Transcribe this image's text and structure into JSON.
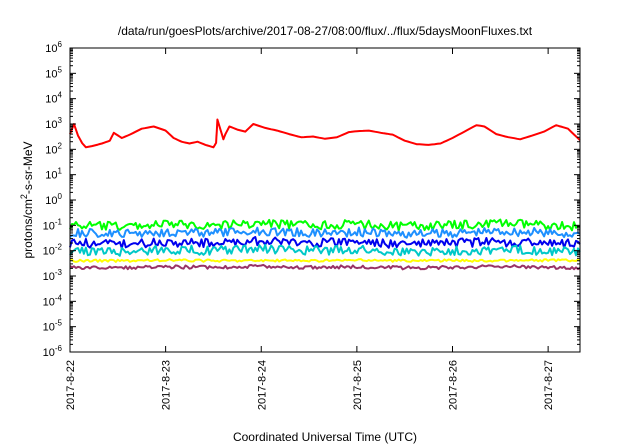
{
  "chart_data": {
    "type": "line",
    "title": "/data/run/goesPlots/archive/2017-08-27/08:00/flux/../flux/5daysMoonFluxes.txt",
    "xlabel": "Coordinated Universal Time (UTC)",
    "ylabel_parts": {
      "base": "protons/cm",
      "sup": "2",
      "rest": "-s-sr-MeV"
    },
    "yscale": "log",
    "ylim": [
      1e-06,
      1000000.0
    ],
    "y_ticks": [
      {
        "value": 1e-06,
        "base": "10",
        "exp": "-6"
      },
      {
        "value": 1e-05,
        "base": "10",
        "exp": "-5"
      },
      {
        "value": 0.0001,
        "base": "10",
        "exp": "-4"
      },
      {
        "value": 0.001,
        "base": "10",
        "exp": "-3"
      },
      {
        "value": 0.01,
        "base": "10",
        "exp": "-2"
      },
      {
        "value": 0.1,
        "base": "10",
        "exp": "-1"
      },
      {
        "value": 1,
        "base": "10",
        "exp": "0"
      },
      {
        "value": 10,
        "base": "10",
        "exp": "1"
      },
      {
        "value": 100,
        "base": "10",
        "exp": "2"
      },
      {
        "value": 1000,
        "base": "10",
        "exp": "3"
      },
      {
        "value": 10000,
        "base": "10",
        "exp": "4"
      },
      {
        "value": 100000,
        "base": "10",
        "exp": "5"
      },
      {
        "value": 1000000,
        "base": "10",
        "exp": "6"
      }
    ],
    "xlim": [
      "2017-08-22T00:00",
      "2017-08-27T08:00"
    ],
    "x_ticks": [
      {
        "value": "2017-08-22T00:00",
        "label": "2017-8-22"
      },
      {
        "value": "2017-08-23T00:00",
        "label": "2017-8-23"
      },
      {
        "value": "2017-08-24T00:00",
        "label": "2017-8-24"
      },
      {
        "value": "2017-08-25T00:00",
        "label": "2017-8-25"
      },
      {
        "value": "2017-08-26T00:00",
        "label": "2017-8-26"
      },
      {
        "value": "2017-08-27T00:00",
        "label": "2017-8-27"
      }
    ],
    "grid": false,
    "series": [
      {
        "color": "#ff0000",
        "x": [
          "2017-08-22T00:00",
          "2017-08-22T01:00",
          "2017-08-22T02:00",
          "2017-08-22T03:00",
          "2017-08-22T04:00",
          "2017-08-22T06:00",
          "2017-08-22T08:00",
          "2017-08-22T10:00",
          "2017-08-22T11:00",
          "2017-08-22T13:00",
          "2017-08-22T15:00",
          "2017-08-22T18:00",
          "2017-08-22T21:00",
          "2017-08-23T00:00",
          "2017-08-23T02:00",
          "2017-08-23T04:00",
          "2017-08-23T06:00",
          "2017-08-23T08:00",
          "2017-08-23T10:00",
          "2017-08-23T12:00",
          "2017-08-23T12:40",
          "2017-08-23T13:00",
          "2017-08-23T14:30",
          "2017-08-23T15:00",
          "2017-08-23T16:00",
          "2017-08-23T18:00",
          "2017-08-23T20:00",
          "2017-08-23T22:00",
          "2017-08-24T01:00",
          "2017-08-24T04:00",
          "2017-08-24T07:00",
          "2017-08-24T10:00",
          "2017-08-24T13:00",
          "2017-08-24T16:00",
          "2017-08-24T19:00",
          "2017-08-24T22:00",
          "2017-08-25T00:00",
          "2017-08-25T03:00",
          "2017-08-25T06:00",
          "2017-08-25T09:00",
          "2017-08-25T12:00",
          "2017-08-25T15:00",
          "2017-08-25T18:00",
          "2017-08-25T21:00",
          "2017-08-26T00:00",
          "2017-08-26T03:00",
          "2017-08-26T06:00",
          "2017-08-26T08:00",
          "2017-08-26T11:00",
          "2017-08-26T14:00",
          "2017-08-26T17:00",
          "2017-08-26T20:00",
          "2017-08-26T23:00",
          "2017-08-27T02:00",
          "2017-08-27T05:00",
          "2017-08-27T08:00"
        ],
        "values": [
          400,
          1000,
          350,
          180,
          120,
          140,
          170,
          220,
          450,
          280,
          380,
          650,
          800,
          550,
          280,
          200,
          170,
          200,
          150,
          120,
          180,
          1500,
          250,
          400,
          800,
          600,
          500,
          1000,
          700,
          550,
          400,
          300,
          320,
          260,
          300,
          480,
          520,
          550,
          450,
          380,
          220,
          160,
          150,
          170,
          280,
          500,
          900,
          800,
          400,
          300,
          250,
          350,
          500,
          900,
          650,
          230
        ]
      },
      {
        "color": "#00ff00",
        "x": [
          "2017-08-22T00:00",
          "2017-08-22T12:00",
          "2017-08-23T00:00",
          "2017-08-23T12:00",
          "2017-08-24T00:00",
          "2017-08-24T12:00",
          "2017-08-25T00:00",
          "2017-08-25T12:00",
          "2017-08-26T00:00",
          "2017-08-26T12:00",
          "2017-08-27T00:00",
          "2017-08-27T08:00"
        ],
        "values": [
          0.1,
          0.09,
          0.11,
          0.1,
          0.12,
          0.1,
          0.11,
          0.09,
          0.1,
          0.12,
          0.1,
          0.09
        ]
      },
      {
        "color": "#1e90ff",
        "x": [
          "2017-08-22T00:00",
          "2017-08-22T12:00",
          "2017-08-23T00:00",
          "2017-08-23T12:00",
          "2017-08-24T00:00",
          "2017-08-24T12:00",
          "2017-08-25T00:00",
          "2017-08-25T12:00",
          "2017-08-26T00:00",
          "2017-08-26T12:00",
          "2017-08-27T00:00",
          "2017-08-27T08:00"
        ],
        "values": [
          0.05,
          0.045,
          0.055,
          0.05,
          0.06,
          0.05,
          0.055,
          0.045,
          0.05,
          0.06,
          0.05,
          0.045
        ]
      },
      {
        "color": "#0000ee",
        "x": [
          "2017-08-22T00:00",
          "2017-08-22T12:00",
          "2017-08-23T00:00",
          "2017-08-23T12:00",
          "2017-08-24T00:00",
          "2017-08-24T12:00",
          "2017-08-25T00:00",
          "2017-08-25T12:00",
          "2017-08-26T00:00",
          "2017-08-26T12:00",
          "2017-08-27T00:00",
          "2017-08-27T08:00"
        ],
        "values": [
          0.02,
          0.018,
          0.022,
          0.02,
          0.024,
          0.02,
          0.022,
          0.018,
          0.02,
          0.022,
          0.02,
          0.018
        ]
      },
      {
        "color": "#00c8c8",
        "x": [
          "2017-08-22T00:00",
          "2017-08-22T12:00",
          "2017-08-23T00:00",
          "2017-08-23T12:00",
          "2017-08-24T00:00",
          "2017-08-24T12:00",
          "2017-08-25T00:00",
          "2017-08-25T12:00",
          "2017-08-26T00:00",
          "2017-08-26T12:00",
          "2017-08-27T00:00",
          "2017-08-27T08:00"
        ],
        "values": [
          0.01,
          0.009,
          0.011,
          0.01,
          0.012,
          0.01,
          0.011,
          0.009,
          0.01,
          0.011,
          0.01,
          0.009
        ]
      },
      {
        "color": "#ffff00",
        "x": [
          "2017-08-22T00:00",
          "2017-08-22T12:00",
          "2017-08-23T00:00",
          "2017-08-23T12:00",
          "2017-08-24T00:00",
          "2017-08-24T12:00",
          "2017-08-25T00:00",
          "2017-08-25T12:00",
          "2017-08-26T00:00",
          "2017-08-26T12:00",
          "2017-08-27T00:00",
          "2017-08-27T08:00"
        ],
        "values": [
          0.004,
          0.004,
          0.0042,
          0.004,
          0.0041,
          0.004,
          0.0042,
          0.004,
          0.0041,
          0.004,
          0.0042,
          0.004
        ]
      },
      {
        "color": "#993366",
        "x": [
          "2017-08-22T00:00",
          "2017-08-22T12:00",
          "2017-08-23T00:00",
          "2017-08-23T12:00",
          "2017-08-24T00:00",
          "2017-08-24T12:00",
          "2017-08-25T00:00",
          "2017-08-25T12:00",
          "2017-08-26T00:00",
          "2017-08-26T12:00",
          "2017-08-27T00:00",
          "2017-08-27T08:00"
        ],
        "values": [
          0.0022,
          0.0021,
          0.0023,
          0.0022,
          0.0024,
          0.0022,
          0.0023,
          0.0021,
          0.0022,
          0.0024,
          0.0022,
          0.0021
        ]
      }
    ]
  }
}
